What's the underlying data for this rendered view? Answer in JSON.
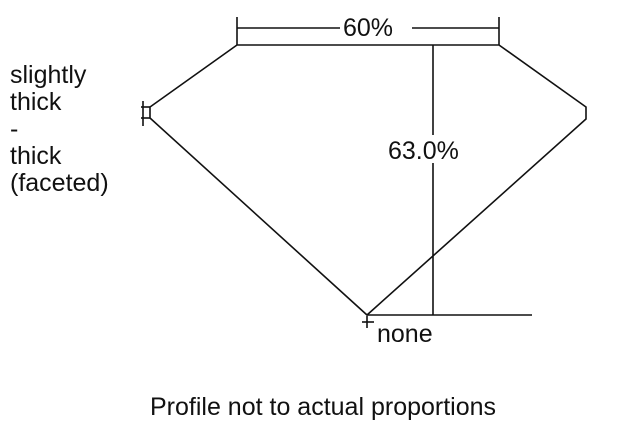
{
  "diagram": {
    "table_percent_label": "60%",
    "depth_percent_label": "63.0%",
    "girdle_label_lines": [
      "slightly",
      "thick",
      "-",
      "thick",
      "(faceted)"
    ],
    "culet_label": "none",
    "caption": "Profile not to actual proportions",
    "line_color": "#111111"
  }
}
